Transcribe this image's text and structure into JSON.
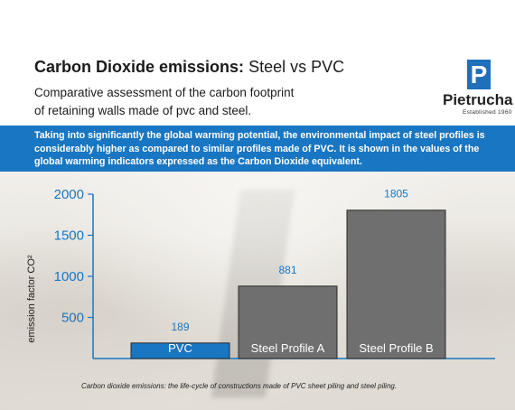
{
  "header": {
    "title_bold": "Carbon Dioxide emissions:",
    "title_light": "Steel vs PVC",
    "subtitle_line1": "Comparative assessment of the carbon footprint",
    "subtitle_line2": "of retaining walls made of pvc and steel."
  },
  "logo": {
    "mark": "P",
    "name": "Pietrucha",
    "established": "Established 1960",
    "color": "#1f6fbb"
  },
  "banner": {
    "text": "Taking into significantly the global warming potential, the environmental impact of steel profiles is considerably higher as compared to similar profiles made of PVC. It is shown in the values of the global warming indicators expressed as the Carbon Dioxide equivalent.",
    "color": "#1976c2"
  },
  "chart_data": {
    "type": "bar",
    "categories": [
      "PVC",
      "Steel Profile A",
      "Steel Profile B"
    ],
    "values": [
      189,
      881,
      1805
    ],
    "bar_colors": [
      "#1976c2",
      "#6f6f6f",
      "#6f6f6f"
    ],
    "axis_color": "#1976c2",
    "value_label_color": "#1976c2",
    "ylabel": "emission factor CO²",
    "ylim": [
      0,
      2000
    ],
    "yticks": [
      500,
      1000,
      1500,
      2000
    ],
    "grid": false,
    "legend": "none"
  },
  "caption": "Carbon dioxide emissions: the life-cycle of constructions made of PVC sheet piling and steel piling."
}
